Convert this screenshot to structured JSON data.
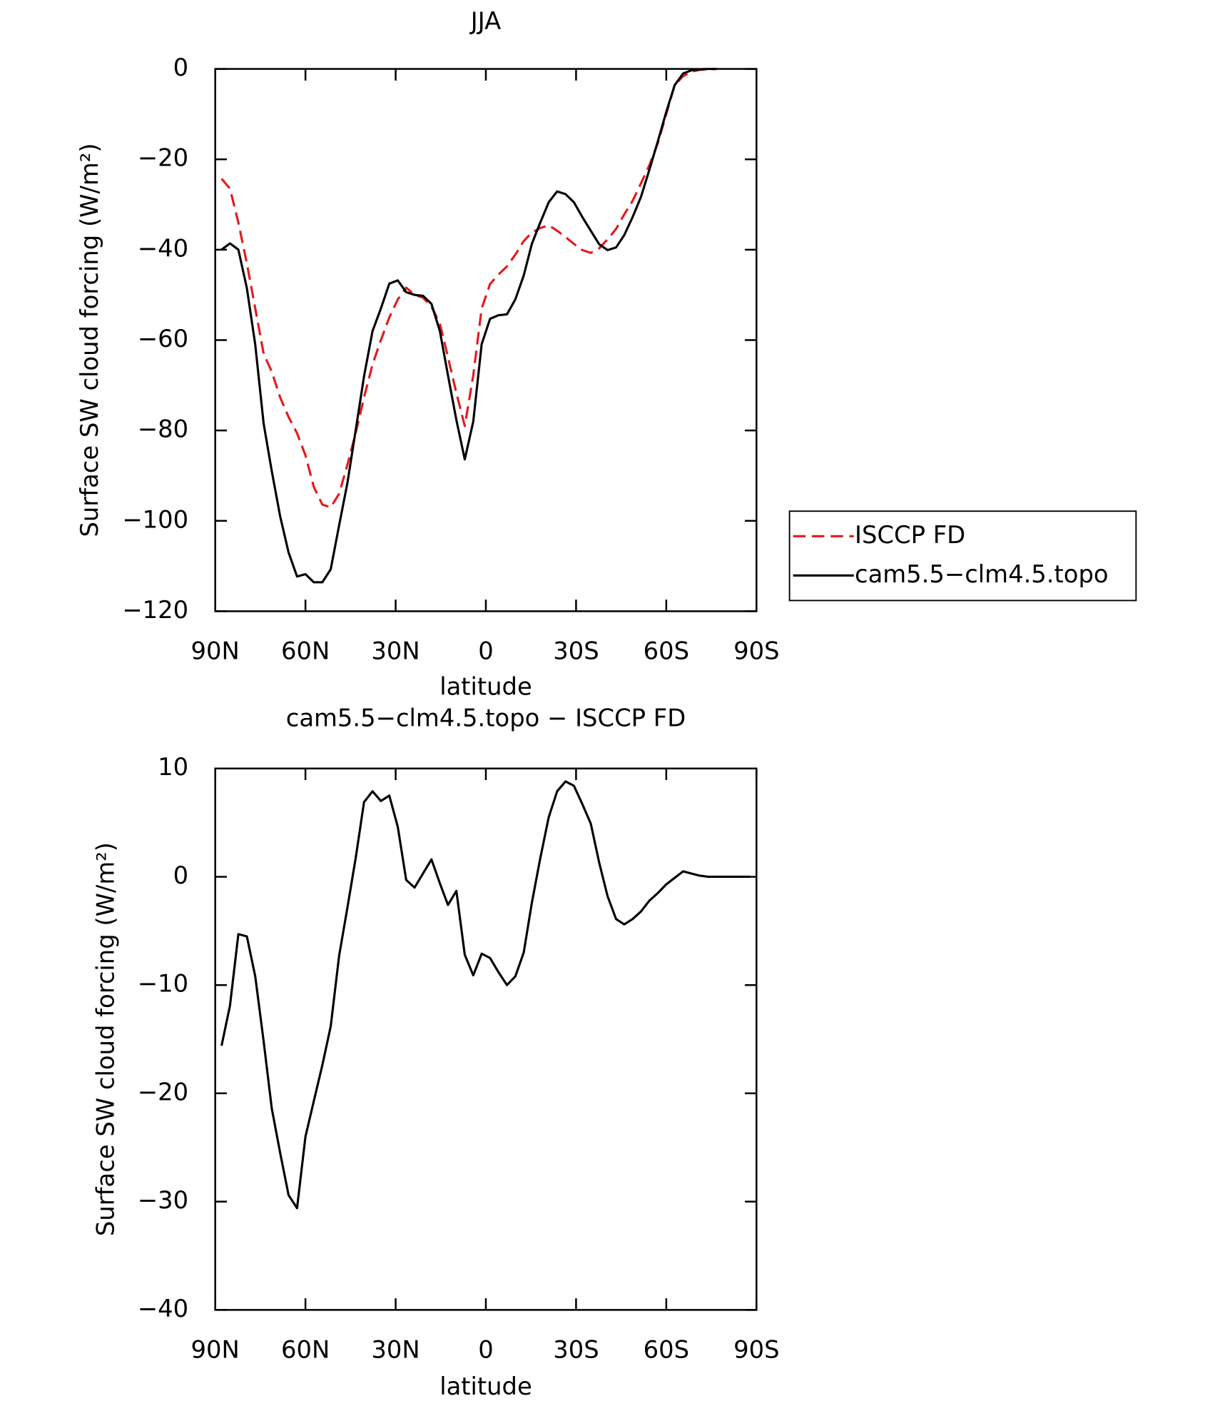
{
  "chart_data": [
    {
      "type": "line",
      "title": "JJA",
      "xlabel": "latitude",
      "ylabel": "Surface SW cloud forcing (W/m²)",
      "x": [
        87.9,
        85.1,
        82.3,
        79.5,
        76.7,
        73.9,
        71.2,
        68.4,
        65.6,
        62.8,
        60.0,
        57.2,
        54.4,
        51.6,
        48.8,
        46.0,
        43.3,
        40.5,
        37.7,
        34.9,
        32.1,
        29.3,
        26.5,
        23.7,
        20.9,
        18.1,
        15.3,
        12.6,
        9.8,
        7.0,
        4.2,
        1.4,
        -1.4,
        -4.2,
        -7.0,
        -9.8,
        -12.6,
        -15.3,
        -18.1,
        -20.9,
        -23.7,
        -26.5,
        -29.3,
        -32.1,
        -34.9,
        -37.7,
        -40.5,
        -43.3,
        -46.0,
        -48.8,
        -51.6,
        -54.4,
        -57.2,
        -60.0,
        -62.8,
        -65.6,
        -68.4,
        -71.2,
        -73.9,
        -76.7,
        -79.5,
        -82.3,
        -85.1,
        -87.9
      ],
      "series": [
        {
          "name": "ISCCP FD",
          "color": "#e41a1c",
          "dashed": true,
          "values": [
            -24.3,
            -26.5,
            -34,
            -43,
            -53,
            -63,
            -67,
            -72.7,
            -77,
            -80.6,
            -85.5,
            -92.5,
            -96.4,
            -97,
            -94,
            -87.5,
            -80.6,
            -72.7,
            -65.4,
            -60,
            -55,
            -51,
            -48.4,
            -50,
            -50.6,
            -52.6,
            -56.3,
            -63.8,
            -71.7,
            -79,
            -67.8,
            -53,
            -47.6,
            -45.5,
            -43.7,
            -41.1,
            -38.1,
            -36.2,
            -35.2,
            -34.6,
            -35.8,
            -37.2,
            -38.7,
            -40.1,
            -40.7,
            -39.7,
            -37.7,
            -35.4,
            -32.2,
            -29.2,
            -25.3,
            -21.3,
            -16.4,
            -10,
            -3.6,
            -1.6,
            -0.6,
            -0.2,
            -0.1,
            0,
            null,
            null,
            null,
            null
          ]
        },
        {
          "name": "cam5.5−clm4.5.topo",
          "color": "#000000",
          "dashed": false,
          "values": [
            -40,
            -38.6,
            -40,
            -48.5,
            -61,
            -78.5,
            -89,
            -99,
            -107,
            -112.3,
            -111.8,
            -113.6,
            -113.6,
            -110.7,
            -101,
            -91.5,
            -80,
            -68,
            -58,
            -53,
            -47.5,
            -46.8,
            -49.4,
            -50,
            -50.2,
            -52,
            -58,
            -67.8,
            -77.7,
            -86.4,
            -78,
            -60.9,
            -55.3,
            -54.5,
            -54.3,
            -51,
            -45.7,
            -38.7,
            -34,
            -29.5,
            -27.1,
            -27.7,
            -29.5,
            -32.8,
            -35.8,
            -38.8,
            -40.1,
            -39.5,
            -36.8,
            -32.8,
            -28.3,
            -22.3,
            -16,
            -9.5,
            -3.6,
            -1,
            -0.3,
            -0.1,
            0,
            0,
            null,
            null,
            null,
            null
          ]
        }
      ],
      "xlim": [
        90,
        -90
      ],
      "xticks": [
        {
          "value": 90,
          "label": "90N"
        },
        {
          "value": 60,
          "label": "60N"
        },
        {
          "value": 30,
          "label": "30N"
        },
        0,
        {
          "value": -30,
          "label": "30S"
        },
        {
          "value": -60,
          "label": "60S"
        },
        {
          "value": -90,
          "label": "90S"
        }
      ],
      "ylim": [
        -120,
        0
      ],
      "yticks": [
        0,
        {
          "value": -20,
          "label": "−20"
        },
        {
          "value": -40,
          "label": "−40"
        },
        {
          "value": -60,
          "label": "−60"
        },
        {
          "value": -80,
          "label": "−80"
        },
        {
          "value": -100,
          "label": "−100"
        },
        {
          "value": -120,
          "label": "−120"
        }
      ],
      "legend": "right"
    },
    {
      "type": "line",
      "title": "cam5.5−clm4.5.topo − ISCCP FD",
      "xlabel": "latitude",
      "ylabel": "Surface SW cloud forcing (W/m²)",
      "x": [
        87.9,
        85.1,
        82.3,
        79.5,
        76.7,
        73.9,
        71.2,
        68.4,
        65.6,
        62.8,
        60.0,
        57.2,
        54.4,
        51.6,
        48.8,
        46.0,
        43.3,
        40.5,
        37.7,
        34.9,
        32.1,
        29.3,
        26.5,
        23.7,
        20.9,
        18.1,
        15.3,
        12.6,
        9.8,
        7.0,
        4.2,
        1.4,
        -1.4,
        -4.2,
        -7.0,
        -9.8,
        -12.6,
        -15.3,
        -18.1,
        -20.9,
        -23.7,
        -26.5,
        -29.3,
        -32.1,
        -34.9,
        -37.7,
        -40.5,
        -43.3,
        -46.0,
        -48.8,
        -51.6,
        -54.4,
        -57.2,
        -60.0,
        -62.8,
        -65.6,
        -68.4,
        -71.2,
        -73.9,
        -76.7,
        -79.5,
        -82.3,
        -85.1,
        -87.9
      ],
      "values": [
        -15.6,
        -11.9,
        -5.3,
        -5.5,
        -9.2,
        -15.2,
        -21.4,
        -25.5,
        -29.4,
        -30.6,
        -24,
        -20.7,
        -17.4,
        -13.8,
        -7.3,
        -2.8,
        1.7,
        6.9,
        7.9,
        7,
        7.5,
        4.6,
        -0.3,
        -1,
        0.3,
        1.6,
        -0.6,
        -2.6,
        -1.3,
        -7.2,
        -9.1,
        -7.1,
        -7.5,
        -8.8,
        -10,
        -9.2,
        -7,
        -2.4,
        1.7,
        5.5,
        7.9,
        8.8,
        8.4,
        6.7,
        4.9,
        1.3,
        -1.8,
        -3.9,
        -4.4,
        -3.9,
        -3.2,
        -2.2,
        -1.5,
        -0.7,
        -0.1,
        0.5,
        0.3,
        0.1,
        0,
        0,
        0,
        0,
        0,
        0
      ],
      "color": "#000000",
      "xlim": [
        90,
        -90
      ],
      "xticks": [
        {
          "value": 90,
          "label": "90N"
        },
        {
          "value": 60,
          "label": "60N"
        },
        {
          "value": 30,
          "label": "30N"
        },
        0,
        {
          "value": -30,
          "label": "30S"
        },
        {
          "value": -60,
          "label": "60S"
        },
        {
          "value": -90,
          "label": "90S"
        }
      ],
      "ylim": [
        -40,
        10
      ],
      "yticks": [
        10,
        0,
        {
          "value": -10,
          "label": "−10"
        },
        {
          "value": -20,
          "label": "−20"
        },
        {
          "value": -30,
          "label": "−30"
        },
        {
          "value": -40,
          "label": "−40"
        }
      ]
    }
  ]
}
